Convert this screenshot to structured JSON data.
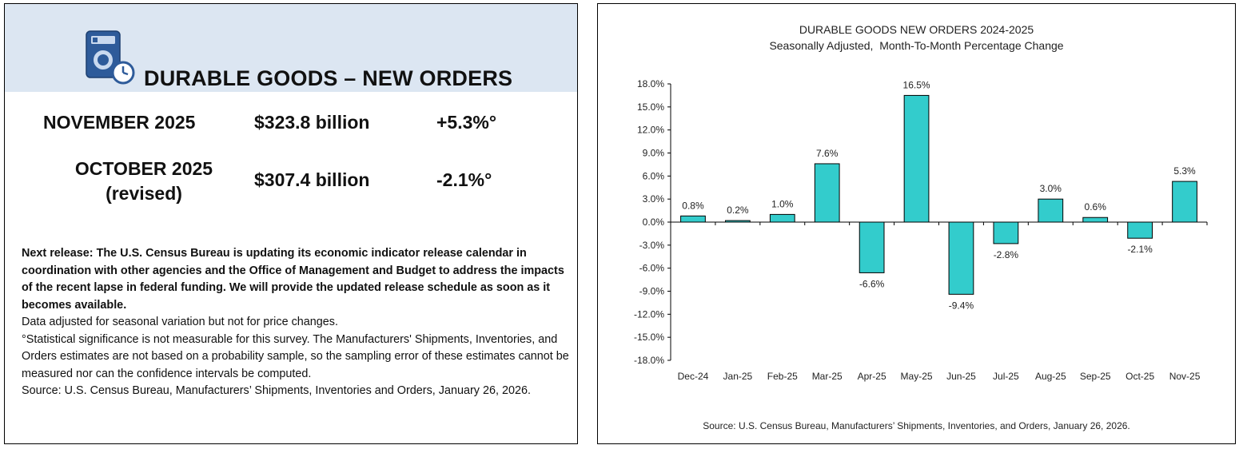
{
  "summary": {
    "header_title": "DURABLE GOODS – NEW ORDERS",
    "header_icon": "appliance-clock-icon",
    "rows": [
      {
        "label": "NOVEMBER 2025",
        "label_line2": "",
        "value": "$323.8 billion",
        "change": "+5.3%°"
      },
      {
        "label": "OCTOBER 2025",
        "label_line2": "(revised)",
        "value": "$307.4 billion",
        "change": "-2.1%°"
      }
    ],
    "notes": {
      "release": "Next release:  The U.S. Census Bureau is updating its economic indicator release calendar in coordination with other agencies and the Office of Management and Budget to address the impacts of the recent lapse in federal funding.  We will provide the updated release schedule as soon as it becomes available.",
      "adjustment": "Data adjusted for seasonal variation but not for price changes.",
      "significance": "°Statistical significance is not measurable for this survey.  The Manufacturers' Shipments, Inventories, and Orders estimates are not based on a probability sample, so the sampling error of these estimates cannot be measured nor can the confidence intervals be computed.",
      "source": "Source: U.S. Census Bureau, Manufacturers’ Shipments, Inventories and Orders, January 26, 2026."
    },
    "header_color": "#dce6f2",
    "icon_color": "#2e5b9a"
  },
  "chart_data": {
    "type": "bar",
    "title": "DURABLE GOODS NEW ORDERS 2024-2025",
    "subtitle": "Seasonally Adjusted,  Month-To-Month Percentage Change",
    "source": "Source: U.S. Census Bureau, Manufacturers’ Shipments, Inventories, and Orders, January 26, 2026.",
    "categories": [
      "Dec-24",
      "Jan-25",
      "Feb-25",
      "Mar-25",
      "Apr-25",
      "May-25",
      "Jun-25",
      "Jul-25",
      "Aug-25",
      "Sep-25",
      "Oct-25",
      "Nov-25"
    ],
    "values": [
      0.8,
      0.2,
      1.0,
      7.6,
      -6.6,
      16.5,
      -9.4,
      -2.8,
      3.0,
      0.6,
      -2.1,
      5.3
    ],
    "data_labels": [
      "0.8%",
      "0.2%",
      "1.0%",
      "7.6%",
      "-6.6%",
      "16.5%",
      "-9.4%",
      "-2.8%",
      "3.0%",
      "0.6%",
      "-2.1%",
      "5.3%"
    ],
    "yticks": [
      18,
      15,
      12,
      9,
      6,
      3,
      0,
      -3,
      -6,
      -9,
      -12,
      -15,
      -18
    ],
    "ytick_labels": [
      "18.0%",
      "15.0%",
      "12.0%",
      "9.0%",
      "6.0%",
      "3.0%",
      "0.0%",
      "-3.0%",
      "-6.0%",
      "-9.0%",
      "-12.0%",
      "-15.0%",
      "-18.0%"
    ],
    "ylim": [
      -18,
      18
    ],
    "grid": false,
    "legend": "none",
    "bar_color": "#33cccc",
    "xlabel": "",
    "ylabel": ""
  }
}
